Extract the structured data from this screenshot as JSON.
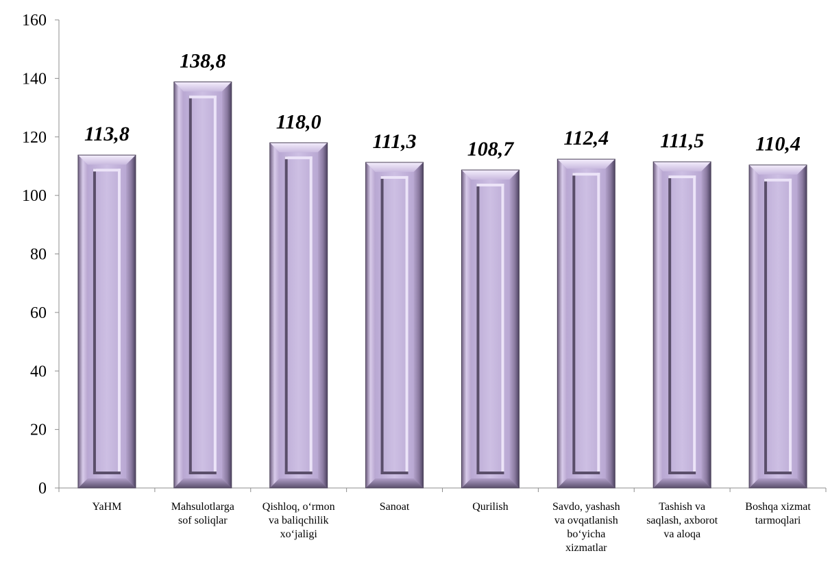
{
  "chart_data": {
    "type": "bar",
    "categories": [
      "YaHM",
      "Mahsulotlarga sof soliqlar",
      "Qishloq, o‘rmon va baliqchilik xo‘jaligi",
      "Sanoat",
      "Qurilish",
      "Savdo, yashash va ovqatlanish bo‘yicha xizmatlar",
      "Tashish va saqlash, axborot va aloqa",
      "Boshqa xizmat tarmoqlari"
    ],
    "category_lines": [
      [
        "YaHM"
      ],
      [
        "Mahsulotlarga",
        "sof soliqlar"
      ],
      [
        "Qishloq, o‘rmon",
        "va baliqchilik",
        "xo‘jaligi"
      ],
      [
        "Sanoat"
      ],
      [
        "Qurilish"
      ],
      [
        "Savdo, yashash",
        "va ovqatlanish",
        "bo‘yicha",
        "xizmatlar"
      ],
      [
        "Tashish va",
        "saqlash, axborot",
        "va aloqa"
      ],
      [
        "Boshqa xizmat",
        "tarmoqlari"
      ]
    ],
    "values": [
      113.8,
      138.8,
      118.0,
      111.3,
      108.7,
      112.4,
      111.5,
      110.4
    ],
    "data_labels": [
      "113,8",
      "138,8",
      "118,0",
      "111,3",
      "108,7",
      "112,4",
      "111,5",
      "110,4"
    ],
    "ylim": [
      0,
      160
    ],
    "yticks": [
      0,
      20,
      40,
      60,
      80,
      100,
      120,
      140,
      160
    ],
    "grid": false,
    "legend": "none",
    "colors": {
      "bar_face": "#c2b1dc",
      "bar_light": "#ece4f8",
      "bar_dark": "#5a4e6a",
      "axis": "#8c8c8c"
    }
  }
}
